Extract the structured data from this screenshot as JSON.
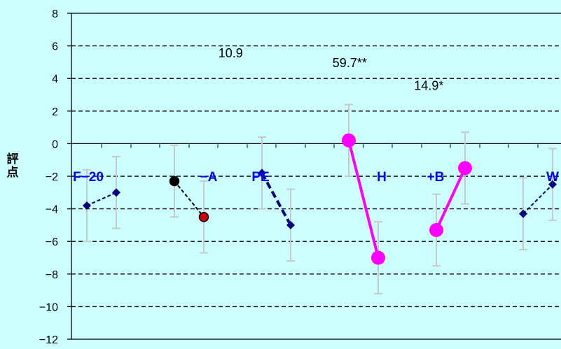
{
  "chart_data": {
    "type": "line",
    "ylabel": [
      "評",
      "点"
    ],
    "ylim": [
      -12,
      8
    ],
    "yticks": [
      8,
      6,
      4,
      2,
      0,
      -2,
      -4,
      -6,
      -8,
      -10,
      -12
    ],
    "grid": true,
    "groups": [
      {
        "label": "F−20",
        "values": [
          -3.8,
          -3.0
        ],
        "errors": [
          2.2,
          2.2
        ],
        "colors": [
          "#000080",
          "#000080"
        ],
        "style": "dashed-thin",
        "marker": "diamond"
      },
      {
        "label": "−A",
        "values": [
          -2.3,
          -4.5
        ],
        "errors": [
          2.2,
          2.2
        ],
        "colors": [
          "#000000",
          "#cc0000"
        ],
        "style": "dashed-thin",
        "marker": "circle"
      },
      {
        "label": "PE",
        "values": [
          -1.8,
          -5.0
        ],
        "errors": [
          2.2,
          2.2
        ],
        "colors": [
          "#000080",
          "#000080"
        ],
        "style": "dashed-thick",
        "marker": "diamond"
      },
      {
        "label": "H",
        "values": [
          0.2,
          -7.0
        ],
        "errors": [
          2.2,
          2.2
        ],
        "colors": [
          "#ff00ff",
          "#ff00ff"
        ],
        "style": "solid-thick",
        "marker": "big-circle"
      },
      {
        "label": "+B",
        "values": [
          -5.3,
          -1.5
        ],
        "errors": [
          2.2,
          2.2
        ],
        "colors": [
          "#ff00ff",
          "#ff00ff"
        ],
        "style": "solid-thick",
        "marker": "big-circle"
      },
      {
        "label": "W",
        "values": [
          -4.3,
          -2.5
        ],
        "errors": [
          2.2,
          2.2
        ],
        "colors": [
          "#000080",
          "#000080"
        ],
        "style": "dashed-thin",
        "marker": "diamond"
      }
    ],
    "annotations": [
      {
        "text": "10.9",
        "x": 1.8,
        "y": 5.6
      },
      {
        "text": "59.7**",
        "x": 3.2,
        "y": 5.0
      },
      {
        "text": "14.9*",
        "x": 4.2,
        "y": 3.6
      }
    ]
  }
}
